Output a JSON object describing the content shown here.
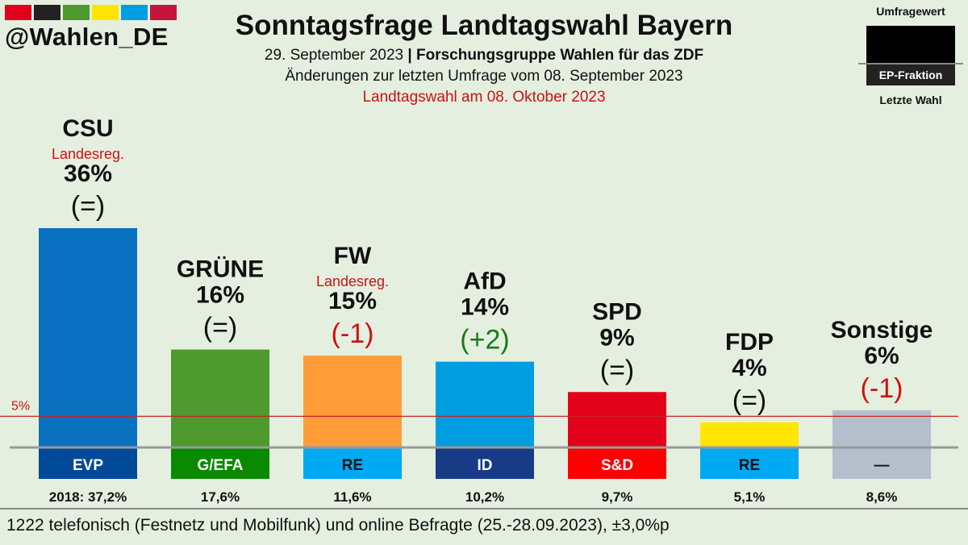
{
  "header": {
    "handle": "@Wahlen_DE",
    "title": "Sonntagsfrage Landtagswahl Bayern",
    "date": "29. September 2023",
    "separator": "|",
    "pollster": "Forschungsgruppe Wahlen für das ZDF",
    "change_note": "Änderungen zur letzten Umfrage vom 08. September 2023",
    "election_note": "Landtagswahl am 08. Oktober 2023"
  },
  "flag_colors": [
    "#e3001b",
    "#222222",
    "#4f9a2e",
    "#ffe500",
    "#009ee0",
    "#c4163c"
  ],
  "legend": {
    "umfragewert": "Umfragewert",
    "ep_fraktion": "EP-Fraktion",
    "letzte_wahl": "Letzte Wahl"
  },
  "chart_data": {
    "type": "bar",
    "ylim": [
      0,
      36
    ],
    "threshold": {
      "value": 5,
      "label": "5%"
    },
    "categories": [
      "CSU",
      "GRÜNE",
      "FW",
      "AfD",
      "SPD",
      "FDP",
      "Sonstige"
    ],
    "values": [
      36,
      16,
      15,
      14,
      9,
      4,
      6
    ],
    "value_labels": [
      "36%",
      "16%",
      "15%",
      "14%",
      "9%",
      "4%",
      "6%"
    ],
    "changes": [
      "(=)",
      "(=)",
      "(-1)",
      "(+2)",
      "(=)",
      "(=)",
      "(-1)"
    ],
    "change_direction": [
      "none",
      "none",
      "down",
      "up",
      "none",
      "none",
      "down"
    ],
    "notes": [
      "Landesreg.",
      "",
      "Landesreg.",
      "",
      "",
      "",
      ""
    ],
    "bar_colors": [
      "#0a70c0",
      "#4f9a2e",
      "#ff9c38",
      "#009ee0",
      "#e3001b",
      "#ffe500",
      "#b3bfcc"
    ],
    "ep_groups": [
      "EVP",
      "G/EFA",
      "RE",
      "ID",
      "S&D",
      "RE",
      "—"
    ],
    "ep_colors": [
      "#004a99",
      "#0a8a00",
      "#00a9f4",
      "#173c85",
      "#ff0000",
      "#00a9f4",
      "#b3bfcc"
    ],
    "ep_text_colors": [
      "#ffffff",
      "#ffffff",
      "#111111",
      "#ffffff",
      "#ffffff",
      "#111111",
      "#111111"
    ],
    "last_election": [
      "2018: 37,2%",
      "17,6%",
      "11,6%",
      "10,2%",
      "9,7%",
      "5,1%",
      "8,6%"
    ]
  },
  "footer": {
    "methodology": "1222 telefonisch (Festnetz und Mobilfunk) und online Befragte (25.-28.09.2023), ±3,0%p"
  }
}
